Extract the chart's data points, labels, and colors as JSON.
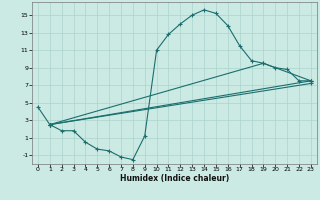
{
  "bg_color": "#cceae4",
  "grid_color": "#aad4cc",
  "line_color": "#1a6e6e",
  "xlabel": "Humidex (Indice chaleur)",
  "xlim": [
    -0.5,
    23.5
  ],
  "ylim": [
    -2.0,
    16.5
  ],
  "yticks": [
    -1,
    1,
    3,
    5,
    7,
    9,
    11,
    13,
    15
  ],
  "xticks": [
    0,
    1,
    2,
    3,
    4,
    5,
    6,
    7,
    8,
    9,
    10,
    11,
    12,
    13,
    14,
    15,
    16,
    17,
    18,
    19,
    20,
    21,
    22,
    23
  ],
  "curve1_x": [
    0,
    1,
    2,
    3,
    4,
    5,
    6,
    7,
    8,
    9,
    10,
    11,
    12,
    13,
    14,
    15,
    16,
    17,
    18,
    19,
    20,
    21,
    22,
    23
  ],
  "curve1_y": [
    4.5,
    2.5,
    1.8,
    1.8,
    0.5,
    -0.3,
    -0.5,
    -1.2,
    -1.5,
    1.2,
    11.0,
    12.8,
    14.0,
    15.0,
    15.6,
    15.2,
    13.8,
    11.5,
    9.8,
    9.5,
    9.0,
    8.8,
    7.5,
    7.5
  ],
  "curve2_x": [
    1,
    23
  ],
  "curve2_y": [
    2.5,
    7.5
  ],
  "curve3_x": [
    1,
    19,
    23
  ],
  "curve3_y": [
    2.5,
    9.5,
    7.5
  ],
  "curve4_x": [
    1,
    23
  ],
  "curve4_y": [
    2.5,
    7.2
  ]
}
